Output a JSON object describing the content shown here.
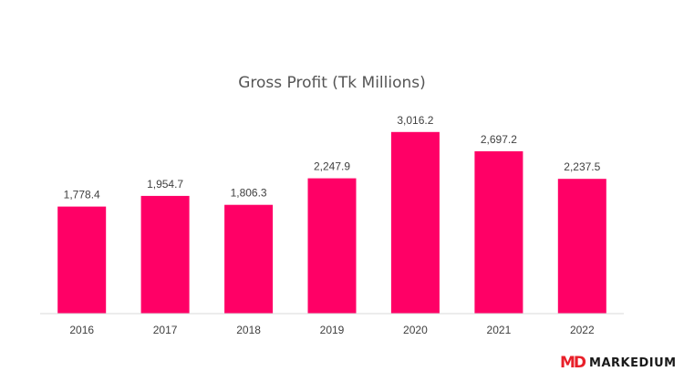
{
  "chart_data": {
    "type": "bar",
    "title": "Gross Profit (Tk Millions)",
    "categories": [
      "2016",
      "2017",
      "2018",
      "2019",
      "2020",
      "2021",
      "2022"
    ],
    "values": [
      1778.4,
      1954.7,
      1806.3,
      2247.9,
      3016.2,
      2697.2,
      2237.5
    ],
    "value_labels": [
      "1,778.4",
      "1,954.7",
      "1,806.3",
      "2,247.9",
      "3,016.2",
      "2,697.2",
      "2,237.5"
    ],
    "ylim": [
      0,
      3180
    ],
    "grid": false,
    "legend": "none",
    "bar_color": "#ff0066"
  },
  "brand": {
    "mark": "MD",
    "name": "MARKEDIUM",
    "mark_color": "#e8202a"
  }
}
